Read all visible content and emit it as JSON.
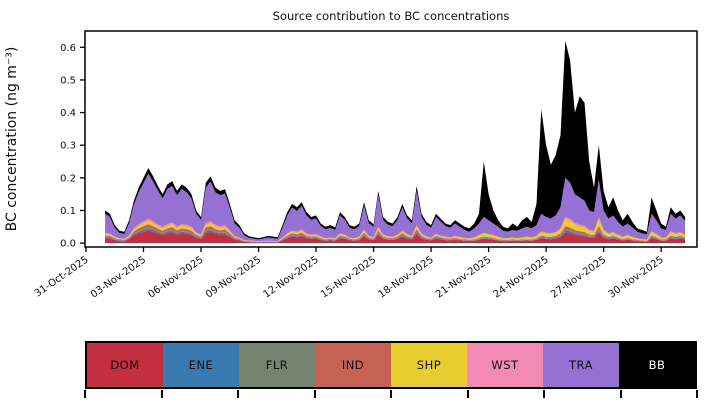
{
  "title": "Source contribution to BC concentrations",
  "y_axis": {
    "label": "BC concentration (ng m⁻³)",
    "ticks": [
      0.0,
      0.1,
      0.2,
      0.3,
      0.4,
      0.5,
      0.6
    ]
  },
  "x_axis": {
    "tick_labels": [
      "31-Oct-2025",
      "03-Nov-2025",
      "06-Nov-2025",
      "09-Nov-2025",
      "12-Nov-2025",
      "15-Nov-2025",
      "18-Nov-2025",
      "21-Nov-2025",
      "24-Nov-2025",
      "27-Nov-2025",
      "30-Nov-2025"
    ],
    "tick_days": [
      0,
      3,
      6,
      9,
      12,
      15,
      18,
      21,
      24,
      27,
      30
    ]
  },
  "legend": {
    "items": [
      {
        "label": "DOM",
        "color": "#c32f3f",
        "text_color": "#111111"
      },
      {
        "label": "ENE",
        "color": "#3a7ab1",
        "text_color": "#111111"
      },
      {
        "label": "FLR",
        "color": "#74846f",
        "text_color": "#111111"
      },
      {
        "label": "IND",
        "color": "#c66253",
        "text_color": "#111111"
      },
      {
        "label": "SHP",
        "color": "#e7ce2e",
        "text_color": "#111111"
      },
      {
        "label": "WST",
        "color": "#f28ab5",
        "text_color": "#111111"
      },
      {
        "label": "TRA",
        "color": "#9671d4",
        "text_color": "#111111"
      },
      {
        "label": "BB",
        "color": "#000000",
        "text_color": "#ffffff"
      }
    ]
  },
  "chart_data": {
    "type": "area",
    "title": "Source contribution to BC concentrations",
    "xlabel": "",
    "ylabel": "BC concentration (ng m⁻³)",
    "ylim": [
      -0.012,
      0.65
    ],
    "xlim_days": [
      -0.05,
      31.87
    ],
    "x_unit": "days since 31-Oct-2025 00:00",
    "grid": false,
    "legend_position": "bottom-strip",
    "stack_order": [
      "DOM",
      "ENE",
      "FLR",
      "IND",
      "SHP",
      "WST",
      "TRA",
      "BB"
    ],
    "columns": [
      "day",
      "DOM",
      "ENE",
      "FLR",
      "IND",
      "SHP",
      "WST",
      "TRA",
      "BB"
    ],
    "points": [
      [
        1.0,
        0.016,
        0.003,
        0.001,
        0.004,
        0.004,
        0.003,
        0.059,
        0.01
      ],
      [
        1.25,
        0.014,
        0.003,
        0.001,
        0.004,
        0.004,
        0.003,
        0.051,
        0.01
      ],
      [
        1.5,
        0.009,
        0.002,
        0.001,
        0.003,
        0.003,
        0.002,
        0.027,
        0.008
      ],
      [
        1.75,
        0.006,
        0.002,
        0.001,
        0.002,
        0.002,
        0.002,
        0.016,
        0.007
      ],
      [
        2.0,
        0.006,
        0.001,
        0.001,
        0.002,
        0.002,
        0.002,
        0.014,
        0.007
      ],
      [
        2.25,
        0.012,
        0.002,
        0.001,
        0.003,
        0.003,
        0.002,
        0.038,
        0.009
      ],
      [
        2.5,
        0.024,
        0.004,
        0.002,
        0.006,
        0.006,
        0.004,
        0.072,
        0.012
      ],
      [
        2.75,
        0.03,
        0.005,
        0.002,
        0.008,
        0.008,
        0.005,
        0.098,
        0.014
      ],
      [
        3.0,
        0.034,
        0.006,
        0.003,
        0.009,
        0.009,
        0.006,
        0.117,
        0.016
      ],
      [
        3.25,
        0.038,
        0.006,
        0.003,
        0.011,
        0.01,
        0.007,
        0.137,
        0.018
      ],
      [
        3.5,
        0.034,
        0.006,
        0.003,
        0.009,
        0.009,
        0.006,
        0.122,
        0.016
      ],
      [
        3.75,
        0.029,
        0.005,
        0.002,
        0.008,
        0.008,
        0.005,
        0.104,
        0.014
      ],
      [
        4.0,
        0.025,
        0.004,
        0.002,
        0.007,
        0.007,
        0.005,
        0.087,
        0.013
      ],
      [
        4.25,
        0.03,
        0.005,
        0.002,
        0.008,
        0.008,
        0.005,
        0.108,
        0.014
      ],
      [
        4.5,
        0.032,
        0.005,
        0.003,
        0.009,
        0.009,
        0.006,
        0.111,
        0.015
      ],
      [
        4.75,
        0.026,
        0.004,
        0.002,
        0.007,
        0.007,
        0.005,
        0.096,
        0.013
      ],
      [
        5.0,
        0.03,
        0.005,
        0.002,
        0.008,
        0.008,
        0.005,
        0.108,
        0.014
      ],
      [
        5.25,
        0.028,
        0.005,
        0.002,
        0.008,
        0.008,
        0.005,
        0.1,
        0.014
      ],
      [
        5.5,
        0.025,
        0.004,
        0.002,
        0.007,
        0.007,
        0.005,
        0.087,
        0.013
      ],
      [
        5.75,
        0.016,
        0.003,
        0.001,
        0.005,
        0.005,
        0.003,
        0.057,
        0.01
      ],
      [
        6.0,
        0.013,
        0.002,
        0.001,
        0.004,
        0.004,
        0.002,
        0.045,
        0.009
      ],
      [
        6.25,
        0.031,
        0.005,
        0.003,
        0.009,
        0.008,
        0.006,
        0.108,
        0.015
      ],
      [
        6.5,
        0.034,
        0.006,
        0.003,
        0.009,
        0.009,
        0.006,
        0.122,
        0.016
      ],
      [
        6.75,
        0.028,
        0.005,
        0.002,
        0.008,
        0.008,
        0.005,
        0.1,
        0.014
      ],
      [
        7.0,
        0.026,
        0.004,
        0.002,
        0.007,
        0.007,
        0.005,
        0.096,
        0.013
      ],
      [
        7.25,
        0.027,
        0.005,
        0.002,
        0.008,
        0.008,
        0.005,
        0.097,
        0.013
      ],
      [
        7.5,
        0.02,
        0.003,
        0.002,
        0.005,
        0.005,
        0.004,
        0.07,
        0.011
      ],
      [
        7.75,
        0.011,
        0.002,
        0.001,
        0.003,
        0.003,
        0.002,
        0.039,
        0.009
      ],
      [
        8.0,
        0.008,
        0.002,
        0.001,
        0.002,
        0.002,
        0.002,
        0.03,
        0.008
      ],
      [
        8.25,
        0.004,
        0.001,
        0.001,
        0.001,
        0.001,
        0.001,
        0.015,
        0.006
      ],
      [
        8.5,
        0.003,
        0.001,
        0.001,
        0.001,
        0.001,
        0.001,
        0.008,
        0.005
      ],
      [
        9.0,
        0.002,
        0.001,
        0.0,
        0.001,
        0.001,
        0.001,
        0.005,
        0.004
      ],
      [
        9.5,
        0.003,
        0.001,
        0.0,
        0.001,
        0.001,
        0.001,
        0.01,
        0.005
      ],
      [
        10.0,
        0.002,
        0.001,
        0.0,
        0.001,
        0.001,
        0.001,
        0.007,
        0.005
      ],
      [
        10.25,
        0.008,
        0.002,
        0.001,
        0.002,
        0.002,
        0.002,
        0.03,
        0.008
      ],
      [
        10.5,
        0.015,
        0.003,
        0.001,
        0.004,
        0.004,
        0.003,
        0.055,
        0.01
      ],
      [
        10.75,
        0.02,
        0.003,
        0.002,
        0.005,
        0.005,
        0.004,
        0.07,
        0.011
      ],
      [
        11.0,
        0.018,
        0.003,
        0.001,
        0.005,
        0.005,
        0.003,
        0.064,
        0.011
      ],
      [
        11.25,
        0.021,
        0.003,
        0.002,
        0.006,
        0.006,
        0.004,
        0.072,
        0.011
      ],
      [
        11.5,
        0.015,
        0.003,
        0.001,
        0.004,
        0.004,
        0.003,
        0.055,
        0.01
      ],
      [
        11.75,
        0.013,
        0.002,
        0.001,
        0.004,
        0.004,
        0.002,
        0.045,
        0.009
      ],
      [
        12.0,
        0.014,
        0.002,
        0.001,
        0.004,
        0.004,
        0.003,
        0.048,
        0.009
      ],
      [
        12.25,
        0.009,
        0.002,
        0.001,
        0.003,
        0.003,
        0.002,
        0.032,
        0.008
      ],
      [
        12.5,
        0.007,
        0.001,
        0.001,
        0.002,
        0.002,
        0.002,
        0.027,
        0.008
      ],
      [
        12.75,
        0.008,
        0.002,
        0.001,
        0.002,
        0.002,
        0.002,
        0.03,
        0.008
      ],
      [
        13.0,
        0.007,
        0.001,
        0.001,
        0.002,
        0.002,
        0.002,
        0.025,
        0.008
      ],
      [
        13.25,
        0.015,
        0.003,
        0.001,
        0.004,
        0.004,
        0.003,
        0.055,
        0.01
      ],
      [
        13.5,
        0.013,
        0.002,
        0.001,
        0.004,
        0.004,
        0.002,
        0.045,
        0.009
      ],
      [
        13.75,
        0.008,
        0.002,
        0.001,
        0.002,
        0.002,
        0.002,
        0.03,
        0.008
      ],
      [
        14.0,
        0.007,
        0.001,
        0.001,
        0.002,
        0.002,
        0.002,
        0.027,
        0.008
      ],
      [
        14.25,
        0.009,
        0.002,
        0.001,
        0.003,
        0.003,
        0.002,
        0.032,
        0.008
      ],
      [
        14.5,
        0.021,
        0.003,
        0.002,
        0.006,
        0.006,
        0.004,
        0.072,
        0.011
      ],
      [
        14.75,
        0.011,
        0.002,
        0.001,
        0.003,
        0.003,
        0.002,
        0.039,
        0.009
      ],
      [
        15.0,
        0.009,
        0.002,
        0.001,
        0.002,
        0.002,
        0.002,
        0.032,
        0.008
      ],
      [
        15.25,
        0.026,
        0.004,
        0.002,
        0.007,
        0.007,
        0.005,
        0.096,
        0.013
      ],
      [
        15.5,
        0.013,
        0.002,
        0.001,
        0.004,
        0.004,
        0.002,
        0.045,
        0.009
      ],
      [
        15.75,
        0.01,
        0.002,
        0.001,
        0.003,
        0.003,
        0.002,
        0.035,
        0.009
      ],
      [
        16.0,
        0.009,
        0.002,
        0.001,
        0.003,
        0.003,
        0.002,
        0.032,
        0.008
      ],
      [
        16.25,
        0.013,
        0.002,
        0.001,
        0.004,
        0.004,
        0.002,
        0.045,
        0.009
      ],
      [
        16.5,
        0.02,
        0.003,
        0.002,
        0.005,
        0.005,
        0.004,
        0.07,
        0.011
      ],
      [
        16.75,
        0.014,
        0.002,
        0.001,
        0.004,
        0.004,
        0.003,
        0.048,
        0.009
      ],
      [
        17.0,
        0.011,
        0.002,
        0.001,
        0.003,
        0.003,
        0.002,
        0.039,
        0.009
      ],
      [
        17.25,
        0.028,
        0.005,
        0.002,
        0.008,
        0.008,
        0.005,
        0.104,
        0.015
      ],
      [
        17.5,
        0.014,
        0.003,
        0.001,
        0.004,
        0.004,
        0.003,
        0.051,
        0.01
      ],
      [
        17.75,
        0.01,
        0.002,
        0.001,
        0.003,
        0.003,
        0.002,
        0.035,
        0.009
      ],
      [
        18.0,
        0.008,
        0.002,
        0.001,
        0.002,
        0.002,
        0.002,
        0.03,
        0.008
      ],
      [
        18.25,
        0.014,
        0.003,
        0.001,
        0.004,
        0.004,
        0.003,
        0.051,
        0.01
      ],
      [
        18.5,
        0.012,
        0.002,
        0.001,
        0.003,
        0.003,
        0.002,
        0.043,
        0.009
      ],
      [
        18.75,
        0.009,
        0.002,
        0.001,
        0.003,
        0.003,
        0.002,
        0.032,
        0.008
      ],
      [
        19.0,
        0.008,
        0.002,
        0.001,
        0.002,
        0.002,
        0.002,
        0.03,
        0.008
      ],
      [
        19.25,
        0.01,
        0.002,
        0.001,
        0.003,
        0.004,
        0.002,
        0.038,
        0.01
      ],
      [
        19.5,
        0.008,
        0.002,
        0.001,
        0.002,
        0.004,
        0.002,
        0.031,
        0.01
      ],
      [
        19.75,
        0.007,
        0.001,
        0.001,
        0.002,
        0.003,
        0.002,
        0.024,
        0.01
      ],
      [
        20.0,
        0.006,
        0.001,
        0.001,
        0.002,
        0.003,
        0.001,
        0.021,
        0.01
      ],
      [
        20.25,
        0.007,
        0.001,
        0.001,
        0.002,
        0.005,
        0.002,
        0.027,
        0.015
      ],
      [
        20.5,
        0.01,
        0.002,
        0.001,
        0.003,
        0.007,
        0.002,
        0.035,
        0.03
      ],
      [
        20.75,
        0.013,
        0.002,
        0.001,
        0.004,
        0.009,
        0.003,
        0.048,
        0.17
      ],
      [
        21.0,
        0.012,
        0.002,
        0.001,
        0.003,
        0.008,
        0.002,
        0.042,
        0.08
      ],
      [
        21.25,
        0.01,
        0.002,
        0.001,
        0.003,
        0.007,
        0.002,
        0.035,
        0.04
      ],
      [
        21.5,
        0.008,
        0.001,
        0.001,
        0.002,
        0.006,
        0.002,
        0.03,
        0.02
      ],
      [
        21.75,
        0.006,
        0.001,
        0.001,
        0.002,
        0.004,
        0.001,
        0.023,
        0.012
      ],
      [
        22.0,
        0.006,
        0.001,
        0.001,
        0.002,
        0.004,
        0.001,
        0.02,
        0.01
      ],
      [
        22.25,
        0.007,
        0.001,
        0.001,
        0.002,
        0.005,
        0.001,
        0.023,
        0.02
      ],
      [
        22.5,
        0.006,
        0.001,
        0.001,
        0.002,
        0.004,
        0.001,
        0.023,
        0.012
      ],
      [
        22.75,
        0.007,
        0.001,
        0.001,
        0.002,
        0.005,
        0.002,
        0.027,
        0.025
      ],
      [
        23.0,
        0.008,
        0.001,
        0.001,
        0.002,
        0.006,
        0.002,
        0.03,
        0.03
      ],
      [
        23.25,
        0.007,
        0.001,
        0.001,
        0.002,
        0.005,
        0.002,
        0.027,
        0.02
      ],
      [
        23.5,
        0.009,
        0.002,
        0.001,
        0.003,
        0.006,
        0.002,
        0.032,
        0.065
      ],
      [
        23.75,
        0.015,
        0.003,
        0.001,
        0.004,
        0.01,
        0.003,
        0.054,
        0.32
      ],
      [
        24.0,
        0.013,
        0.002,
        0.001,
        0.004,
        0.009,
        0.003,
        0.048,
        0.22
      ],
      [
        24.25,
        0.012,
        0.002,
        0.001,
        0.004,
        0.008,
        0.003,
        0.045,
        0.165
      ],
      [
        24.5,
        0.014,
        0.003,
        0.001,
        0.004,
        0.009,
        0.003,
        0.051,
        0.185
      ],
      [
        24.75,
        0.018,
        0.003,
        0.002,
        0.006,
        0.012,
        0.004,
        0.065,
        0.22
      ],
      [
        25.0,
        0.033,
        0.006,
        0.003,
        0.01,
        0.022,
        0.007,
        0.119,
        0.42
      ],
      [
        25.25,
        0.03,
        0.006,
        0.003,
        0.009,
        0.02,
        0.006,
        0.111,
        0.375
      ],
      [
        25.5,
        0.025,
        0.005,
        0.002,
        0.008,
        0.017,
        0.005,
        0.088,
        0.25
      ],
      [
        25.75,
        0.023,
        0.004,
        0.002,
        0.007,
        0.015,
        0.005,
        0.084,
        0.31
      ],
      [
        26.0,
        0.021,
        0.004,
        0.002,
        0.007,
        0.014,
        0.005,
        0.077,
        0.3
      ],
      [
        26.25,
        0.016,
        0.003,
        0.002,
        0.005,
        0.011,
        0.004,
        0.059,
        0.15
      ],
      [
        26.5,
        0.016,
        0.003,
        0.001,
        0.005,
        0.01,
        0.003,
        0.057,
        0.075
      ],
      [
        26.75,
        0.032,
        0.006,
        0.003,
        0.01,
        0.021,
        0.007,
        0.116,
        0.105
      ],
      [
        27.0,
        0.016,
        0.003,
        0.002,
        0.005,
        0.011,
        0.004,
        0.059,
        0.06
      ],
      [
        27.25,
        0.012,
        0.002,
        0.001,
        0.004,
        0.008,
        0.003,
        0.045,
        0.035
      ],
      [
        27.5,
        0.014,
        0.003,
        0.001,
        0.004,
        0.009,
        0.003,
        0.051,
        0.055
      ],
      [
        27.75,
        0.011,
        0.002,
        0.001,
        0.003,
        0.007,
        0.002,
        0.039,
        0.035
      ],
      [
        28.0,
        0.008,
        0.001,
        0.001,
        0.002,
        0.006,
        0.002,
        0.03,
        0.02
      ],
      [
        28.25,
        0.01,
        0.002,
        0.001,
        0.003,
        0.007,
        0.002,
        0.035,
        0.03
      ],
      [
        28.5,
        0.008,
        0.001,
        0.001,
        0.002,
        0.005,
        0.002,
        0.029,
        0.017
      ],
      [
        28.75,
        0.006,
        0.001,
        0.001,
        0.002,
        0.004,
        0.001,
        0.02,
        0.01
      ],
      [
        29.0,
        0.005,
        0.001,
        0.001,
        0.001,
        0.003,
        0.001,
        0.018,
        0.01
      ],
      [
        29.25,
        0.004,
        0.001,
        0.001,
        0.001,
        0.003,
        0.001,
        0.016,
        0.008
      ],
      [
        29.5,
        0.015,
        0.003,
        0.001,
        0.004,
        0.01,
        0.003,
        0.054,
        0.05
      ],
      [
        29.75,
        0.012,
        0.002,
        0.001,
        0.003,
        0.008,
        0.002,
        0.042,
        0.03
      ],
      [
        30.0,
        0.007,
        0.001,
        0.001,
        0.002,
        0.005,
        0.002,
        0.027,
        0.015
      ],
      [
        30.25,
        0.007,
        0.001,
        0.001,
        0.002,
        0.004,
        0.001,
        0.024,
        0.01
      ],
      [
        30.5,
        0.015,
        0.003,
        0.001,
        0.004,
        0.01,
        0.003,
        0.054,
        0.02
      ],
      [
        30.75,
        0.012,
        0.002,
        0.001,
        0.004,
        0.008,
        0.003,
        0.045,
        0.015
      ],
      [
        31.0,
        0.014,
        0.003,
        0.001,
        0.004,
        0.009,
        0.003,
        0.051,
        0.015
      ],
      [
        31.25,
        0.011,
        0.002,
        0.001,
        0.003,
        0.007,
        0.002,
        0.042,
        0.012
      ]
    ]
  }
}
